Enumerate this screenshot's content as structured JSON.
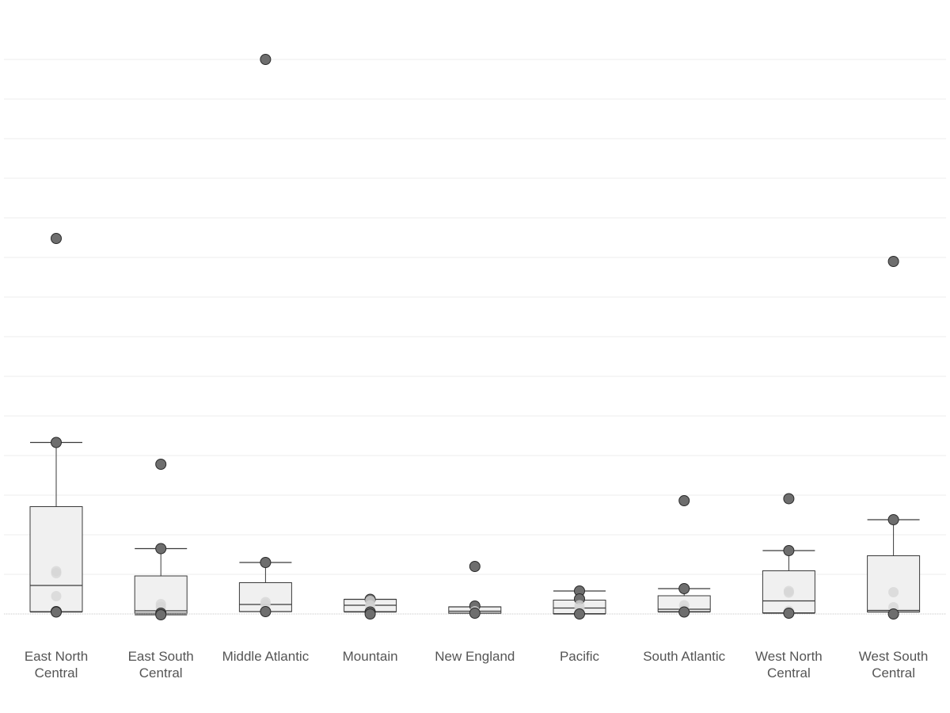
{
  "chart_data": {
    "type": "boxplot",
    "title": "",
    "xlabel": "",
    "ylabel": "",
    "ylim": [
      -0.8,
      14.9
    ],
    "grid": true,
    "categories": [
      [
        "East North",
        "Central"
      ],
      [
        "East South",
        "Central"
      ],
      [
        "Middle Atlantic"
      ],
      [
        "Mountain"
      ],
      [
        "New England"
      ],
      [
        "Pacific"
      ],
      [
        "South Atlantic"
      ],
      [
        "West North",
        "Central"
      ],
      [
        "West South",
        "Central"
      ]
    ],
    "boxes": [
      {
        "min": 0.05,
        "q1": 0.06,
        "median": 0.72,
        "q3": 2.71,
        "max": 4.33
      },
      {
        "min": -0.02,
        "q1": 0.02,
        "median": 0.08,
        "q3": 0.96,
        "max": 1.65
      },
      {
        "min": 0.06,
        "q1": 0.06,
        "median": 0.24,
        "q3": 0.79,
        "max": 1.3
      },
      {
        "min": 0.05,
        "q1": 0.06,
        "median": 0.22,
        "q3": 0.37,
        "max": 0.37
      },
      {
        "min": 0.02,
        "q1": 0.02,
        "median": 0.07,
        "q3": 0.18,
        "max": 0.18
      },
      {
        "min": 0.0,
        "q1": 0.01,
        "median": 0.15,
        "q3": 0.35,
        "max": 0.58
      },
      {
        "min": 0.05,
        "q1": 0.06,
        "median": 0.12,
        "q3": 0.46,
        "max": 0.64
      },
      {
        "min": 0.02,
        "q1": 0.03,
        "median": 0.33,
        "q3": 1.09,
        "max": 1.6
      },
      {
        "min": 0.05,
        "q1": 0.05,
        "median": 0.09,
        "q3": 1.47,
        "max": 2.38
      }
    ],
    "points": [
      [
        9.48,
        4.33,
        1.08,
        1.03,
        0.45,
        0.06,
        0.05
      ],
      [
        3.78,
        1.65,
        0.25,
        0.18,
        0.08,
        0.02,
        -0.02
      ],
      [
        14.0,
        1.3,
        0.3,
        0.24,
        0.06
      ],
      [
        0.37,
        0.33,
        0.22,
        0.13,
        0.05,
        0.0
      ],
      [
        1.2,
        0.2,
        0.07,
        0.02
      ],
      [
        0.58,
        0.38,
        0.22,
        0.15,
        0.0
      ],
      [
        2.86,
        0.64,
        0.22,
        0.12,
        0.05
      ],
      [
        2.91,
        1.6,
        0.58,
        0.54,
        0.08,
        0.02
      ],
      [
        8.9,
        2.38,
        0.55,
        0.17,
        0.0
      ]
    ],
    "colors": {
      "box_fill": "#f0f0f0",
      "box_stroke": "#3a3a3a",
      "point_outlier": "#6e6e6e",
      "point_inner": "#d6d6d6",
      "grid": "#ececec"
    }
  }
}
